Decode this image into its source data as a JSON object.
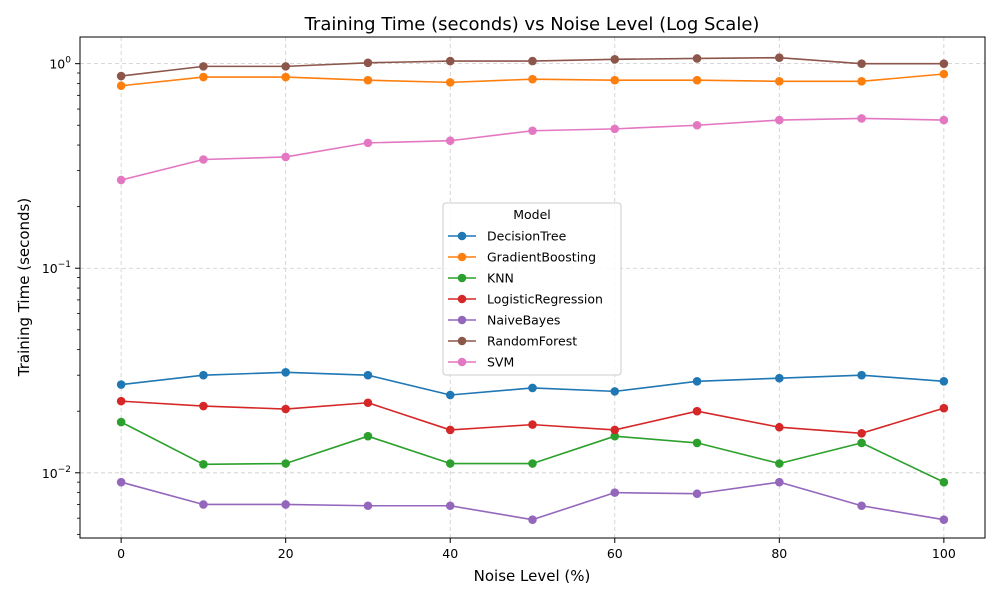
{
  "chart_data": {
    "type": "line",
    "title": "Training Time (seconds) vs Noise Level (Log Scale)",
    "xlabel": "Noise Level (%)",
    "ylabel": "Training Time (seconds)",
    "xlim": [
      -5,
      105
    ],
    "ylim": [
      0.0048,
      1.35
    ],
    "yscale": "log",
    "grid": true,
    "x_ticks": [
      0,
      20,
      40,
      60,
      80,
      100
    ],
    "y_ticks": [
      {
        "value": 0.01,
        "base": "10",
        "exp": "−2"
      },
      {
        "value": 0.1,
        "base": "10",
        "exp": "−1"
      },
      {
        "value": 1,
        "base": "10",
        "exp": "0"
      }
    ],
    "legend": {
      "title": "Model",
      "position": "center"
    },
    "x": [
      0,
      10,
      20,
      30,
      40,
      50,
      60,
      70,
      80,
      90,
      100
    ],
    "series": [
      {
        "name": "DecisionTree",
        "color": "#1f77b4",
        "values": [
          0.027,
          0.03,
          0.031,
          0.03,
          0.024,
          0.026,
          0.025,
          0.028,
          0.029,
          0.03,
          0.028
        ]
      },
      {
        "name": "GradientBoosting",
        "color": "#ff7f0e",
        "values": [
          0.78,
          0.86,
          0.86,
          0.83,
          0.81,
          0.84,
          0.83,
          0.83,
          0.82,
          0.82,
          0.89
        ]
      },
      {
        "name": "KNN",
        "color": "#2ca02c",
        "values": [
          0.0177,
          0.011,
          0.0111,
          0.0151,
          0.0111,
          0.0111,
          0.0151,
          0.014,
          0.0111,
          0.014,
          0.009
        ]
      },
      {
        "name": "LogisticRegression",
        "color": "#d62728",
        "values": [
          0.0224,
          0.0212,
          0.0205,
          0.022,
          0.0162,
          0.0172,
          0.0162,
          0.02,
          0.0167,
          0.0156,
          0.0207
        ]
      },
      {
        "name": "NaiveBayes",
        "color": "#9467bd",
        "values": [
          0.009,
          0.007,
          0.007,
          0.0069,
          0.0069,
          0.0059,
          0.008,
          0.0079,
          0.009,
          0.0069,
          0.0059
        ]
      },
      {
        "name": "RandomForest",
        "color": "#8c564b",
        "values": [
          0.87,
          0.97,
          0.97,
          1.01,
          1.03,
          1.03,
          1.05,
          1.06,
          1.07,
          1.0,
          1.0
        ]
      },
      {
        "name": "SVM",
        "color": "#e377c2",
        "values": [
          0.27,
          0.34,
          0.35,
          0.41,
          0.42,
          0.47,
          0.48,
          0.5,
          0.53,
          0.54,
          0.53
        ]
      }
    ]
  }
}
